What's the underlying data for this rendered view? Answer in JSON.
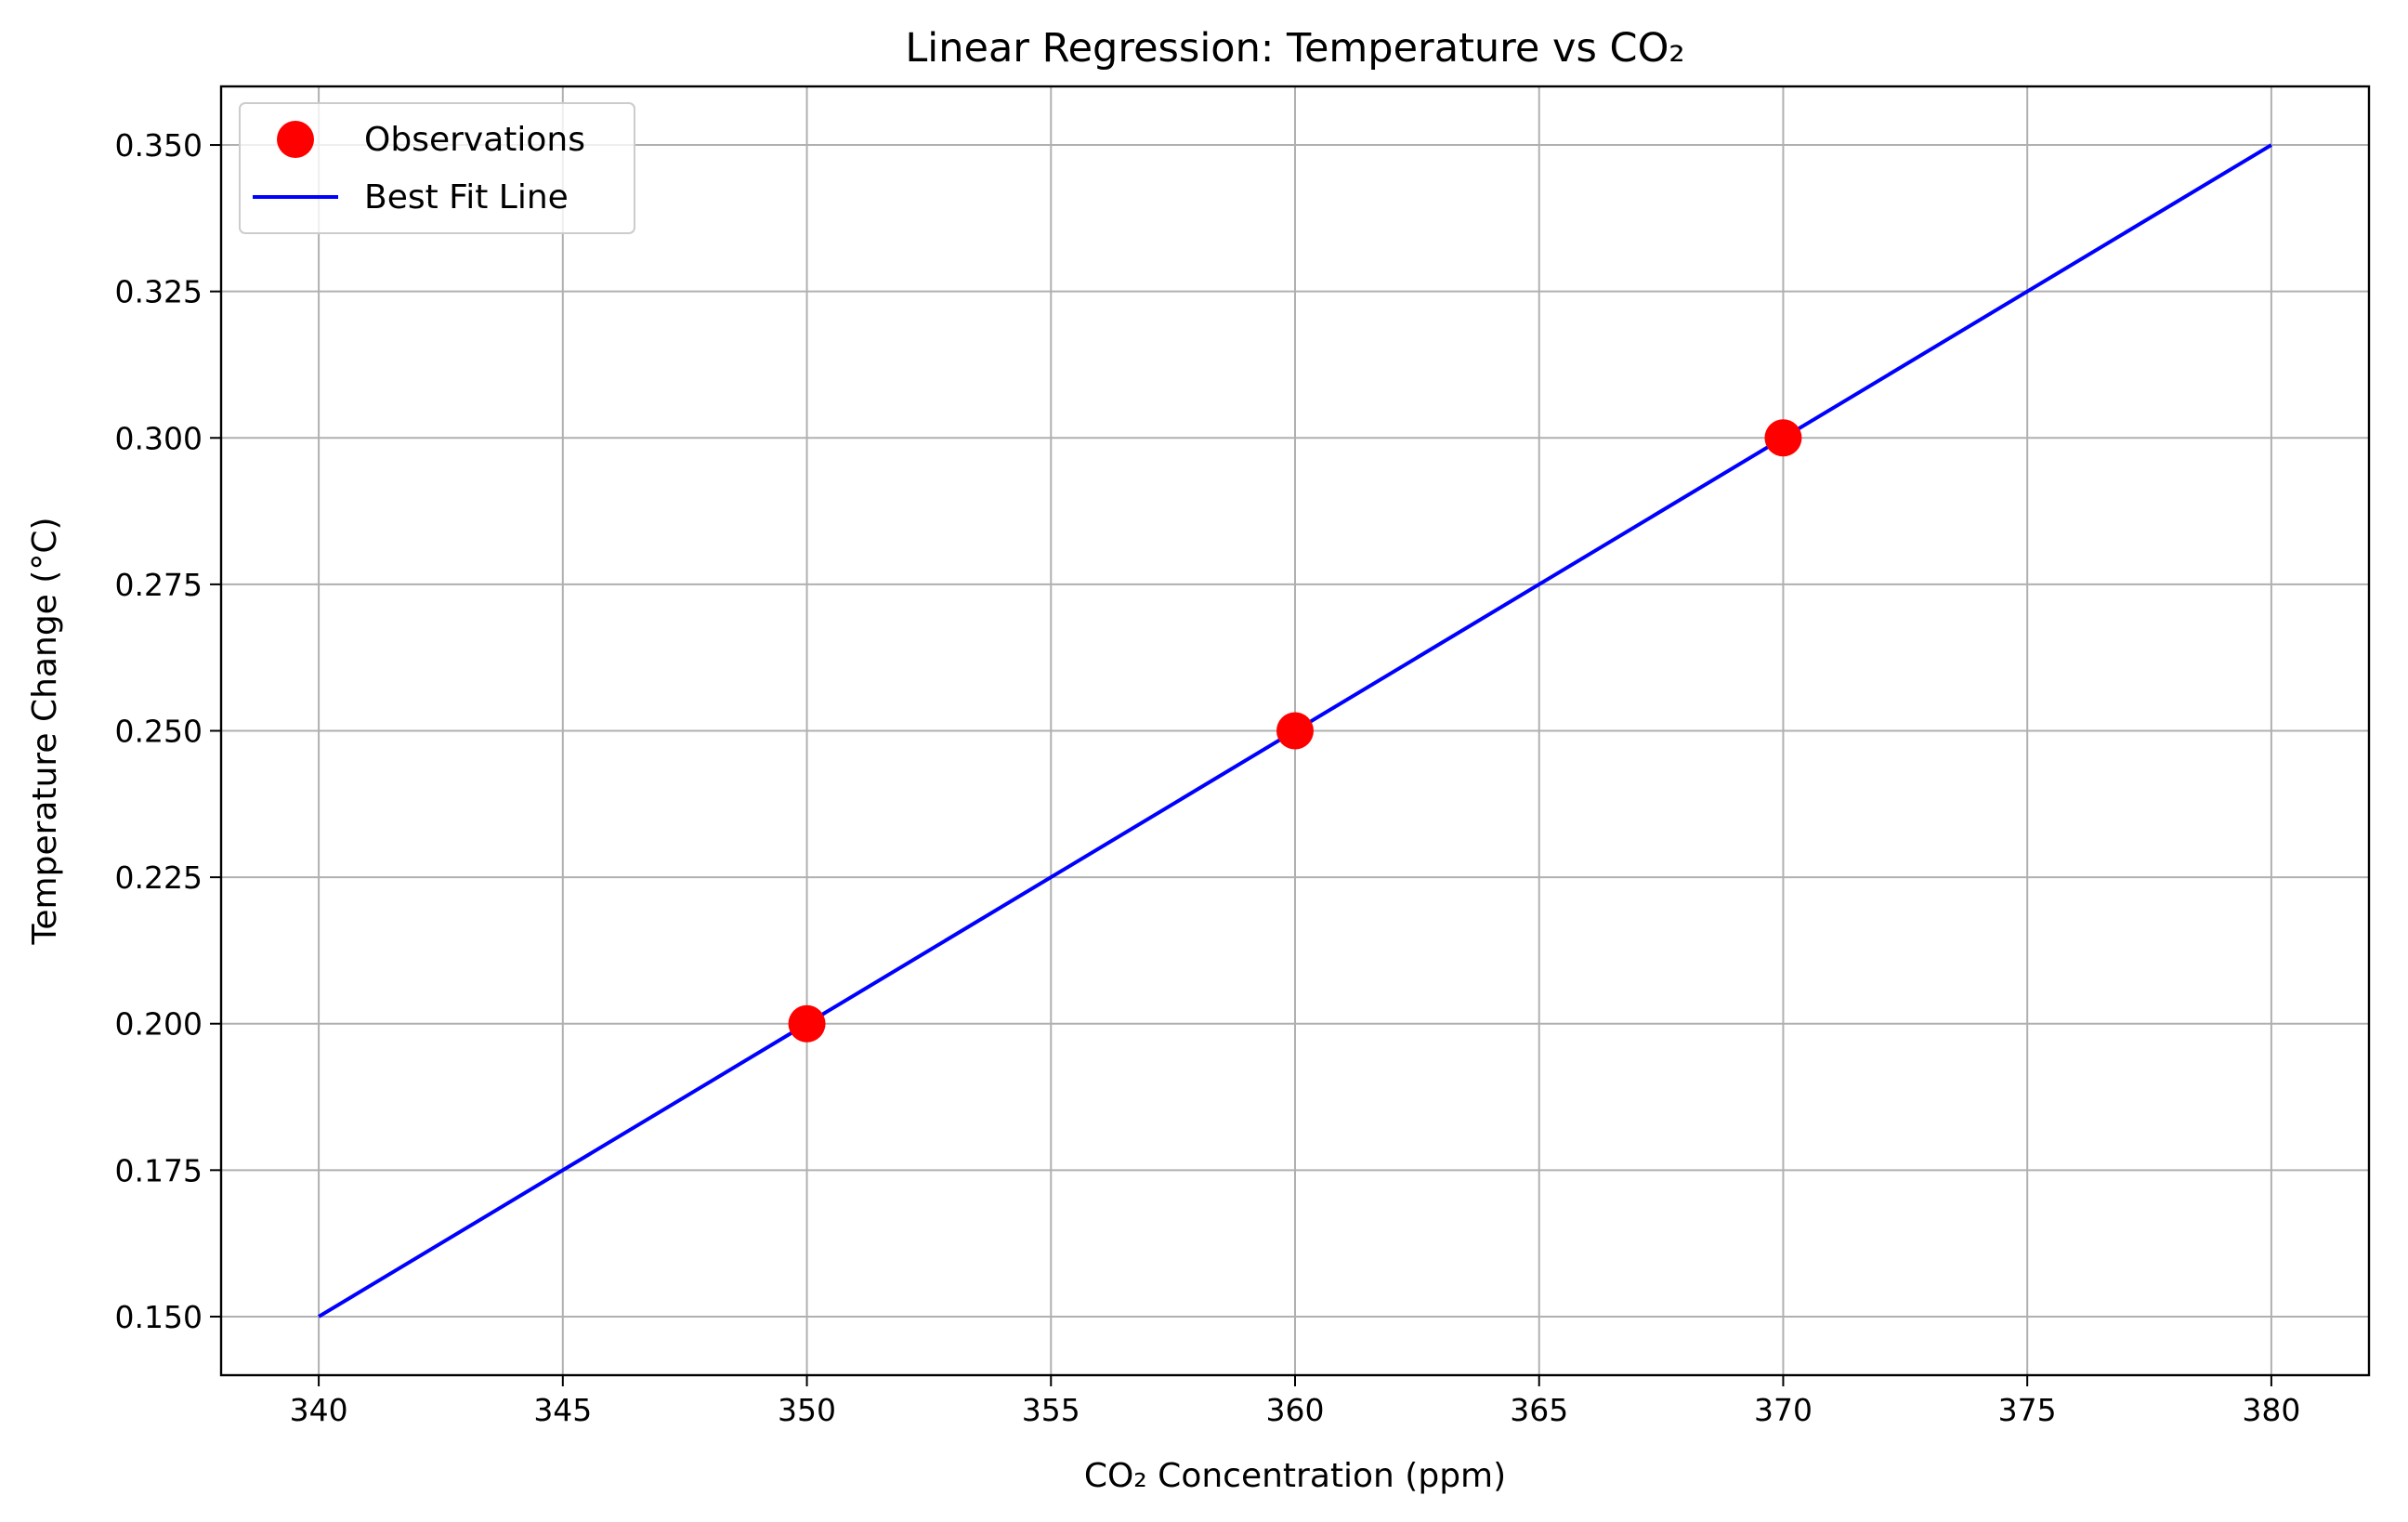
{
  "chart_data": {
    "type": "scatter",
    "title": "Linear Regression: Temperature vs CO₂",
    "xlabel": "CO₂ Concentration (ppm)",
    "ylabel": "Temperature Change (°C)",
    "xlim": [
      338,
      382
    ],
    "ylim": [
      0.14,
      0.36
    ],
    "x_ticks": [
      340,
      345,
      350,
      355,
      360,
      365,
      370,
      375,
      380
    ],
    "y_ticks": [
      0.15,
      0.175,
      0.2,
      0.225,
      0.25,
      0.275,
      0.3,
      0.325,
      0.35
    ],
    "x_tick_labels": [
      "340",
      "345",
      "350",
      "355",
      "360",
      "365",
      "370",
      "375",
      "380"
    ],
    "y_tick_labels": [
      "0.150",
      "0.175",
      "0.200",
      "0.225",
      "0.250",
      "0.275",
      "0.300",
      "0.325",
      "0.350"
    ],
    "grid": true,
    "legend_position": "top-left",
    "series": [
      {
        "name": "Observations",
        "type": "scatter",
        "color": "#ff0000",
        "points": [
          {
            "x": 350,
            "y": 0.2
          },
          {
            "x": 360,
            "y": 0.25
          },
          {
            "x": 370,
            "y": 0.3
          }
        ]
      },
      {
        "name": "Best Fit Line",
        "type": "line",
        "color": "#0000ff",
        "points": [
          {
            "x": 340,
            "y": 0.15
          },
          {
            "x": 380,
            "y": 0.35
          }
        ]
      }
    ]
  }
}
